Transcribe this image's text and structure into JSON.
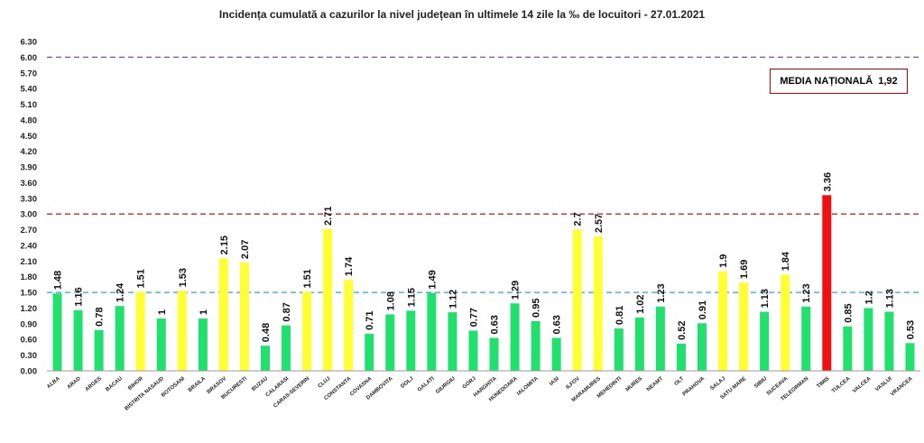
{
  "chart_data": {
    "type": "bar",
    "title": "Incidența cumulată a cazurilor la nivel județean în ultimele 14 zile la ‰ de locuitori - 27.01.2021",
    "xlabel": "",
    "ylabel": "",
    "ylim": [
      0,
      6.3
    ],
    "yticks": [
      "0.00",
      "0.30",
      "0.60",
      "0.90",
      "1.20",
      "1.50",
      "1.80",
      "2.10",
      "2.40",
      "2.70",
      "3.00",
      "3.30",
      "3.60",
      "3.90",
      "4.20",
      "4.50",
      "4.80",
      "5.10",
      "5.40",
      "5.70",
      "6.00",
      "6.30"
    ],
    "categories": [
      "ALBA",
      "ARAD",
      "ARGES",
      "BACAU",
      "BIHOR",
      "BISTRITA NASAUD",
      "BOTOSANI",
      "BRAILA",
      "BRASOV",
      "BUCURESTI",
      "BUZAU",
      "CALARASI",
      "CARAS-SEVERIN",
      "CLUJ",
      "CONSTANTA",
      "COVASNA",
      "DAMBOVITA",
      "DOLJ",
      "GALATI",
      "GIURGIU",
      "GORJ",
      "HARGHITA",
      "HUNEDOARA",
      "IALOMITA",
      "IASI",
      "ILFOV",
      "MARAMURES",
      "MEHEDINTI",
      "MURES",
      "NEAMT",
      "OLT",
      "PRAHOVA",
      "SALAJ",
      "SATU MARE",
      "SIBIU",
      "SUCEAVA",
      "TELEORMAN",
      "TIMIS",
      "TULCEA",
      "VALCEA",
      "VASLUI",
      "VRANCEA"
    ],
    "values": [
      1.48,
      1.16,
      0.78,
      1.24,
      1.51,
      1,
      1.53,
      1,
      2.15,
      2.07,
      0.48,
      0.87,
      1.51,
      2.71,
      1.74,
      0.71,
      1.08,
      1.15,
      1.49,
      1.12,
      0.77,
      0.63,
      1.29,
      0.95,
      0.63,
      2.7,
      2.57,
      0.81,
      1.02,
      1.23,
      0.52,
      0.91,
      1.9,
      1.69,
      1.13,
      1.84,
      1.23,
      3.36,
      0.85,
      1.2,
      1.13,
      0.53
    ],
    "value_labels": [
      "1.48",
      "1.16",
      "0.78",
      "1.24",
      "1.51",
      "1",
      "1.53",
      "1",
      "2.15",
      "2.07",
      "0.48",
      "0.87",
      "1.51",
      "2.71",
      "1.74",
      "0.71",
      "1.08",
      "1.15",
      "1.49",
      "1.12",
      "0.77",
      "0.63",
      "1.29",
      "0.95",
      "0.63",
      "2.7",
      "2.57",
      "0.81",
      "1.02",
      "1.23",
      "0.52",
      "0.91",
      "1.9",
      "1.69",
      "1.13",
      "1.84",
      "1.23",
      "3.36",
      "0.85",
      "1.2",
      "1.13",
      "0.53"
    ],
    "bar_colors": {
      "low": "#22e06e",
      "mid": "#ffff33",
      "high": "#ee1111"
    },
    "color_thresholds": [
      1.5,
      3.0
    ],
    "reference_lines": [
      {
        "value": 6.0,
        "color": "#7a4fbf"
      },
      {
        "value": 3.0,
        "color": "#c0282f"
      },
      {
        "value": 1.5,
        "color": "#2aa6c8"
      }
    ],
    "grid": false,
    "annotation": {
      "label": "MEDIA NAȚIONALĂ",
      "value": "1,92",
      "border_color": "#c00000"
    }
  }
}
